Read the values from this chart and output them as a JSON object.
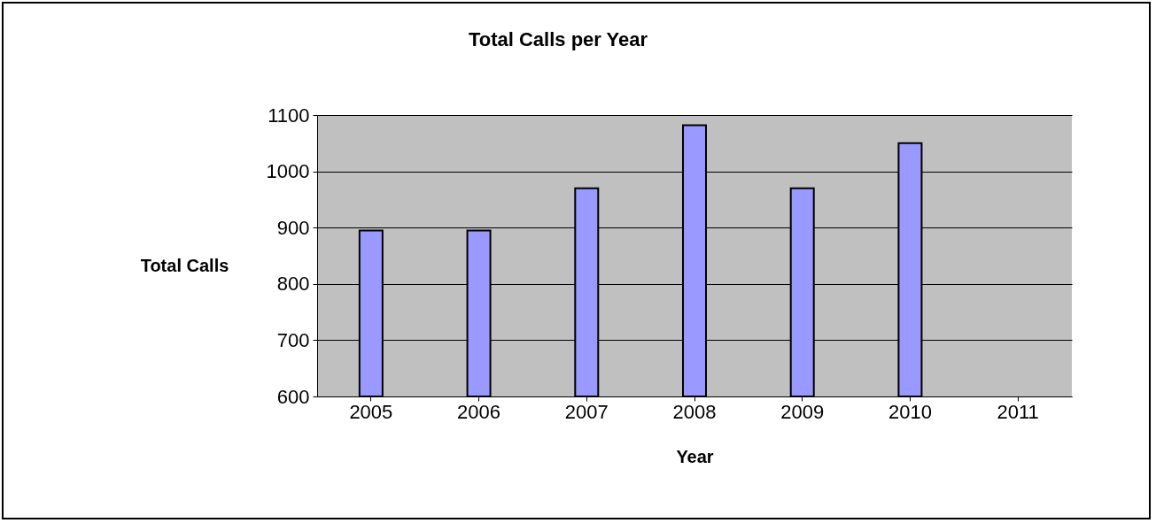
{
  "chart_data": {
    "type": "bar",
    "title": "Total Calls per Year",
    "xlabel": "Year",
    "ylabel": "Total Calls",
    "categories": [
      "2005",
      "2006",
      "2007",
      "2008",
      "2009",
      "2010",
      "2011"
    ],
    "values": [
      895,
      895,
      970,
      1082,
      970,
      1050,
      null
    ],
    "color": "#9999ff",
    "ylim": [
      600,
      1100
    ],
    "yticks": [
      600,
      700,
      800,
      900,
      1000,
      1100
    ],
    "grid": "y"
  }
}
